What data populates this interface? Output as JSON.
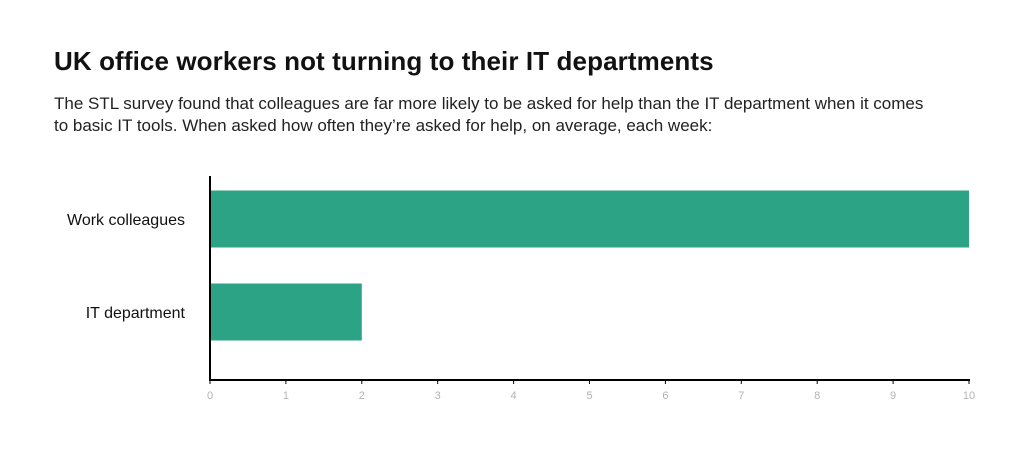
{
  "chart_data": {
    "type": "bar",
    "orientation": "horizontal",
    "title": "UK office workers not turning to their IT departments",
    "subtitle": "The STL survey found that colleagues are far more likely to be asked for help than the IT department when it comes to basic IT tools. When asked how often they’re asked for help, on average, each week:",
    "categories": [
      "Work colleagues",
      "IT department"
    ],
    "values": [
      10,
      2
    ],
    "xlim": [
      0,
      10
    ],
    "xticks": [
      0,
      1,
      2,
      3,
      4,
      5,
      6,
      7,
      8,
      9,
      10
    ],
    "xlabel": "",
    "ylabel": "",
    "grid": false,
    "legend": "none",
    "bar_color": "#2ca385",
    "axis_color": "#000000",
    "tick_label_color": "#b3b3b3"
  }
}
